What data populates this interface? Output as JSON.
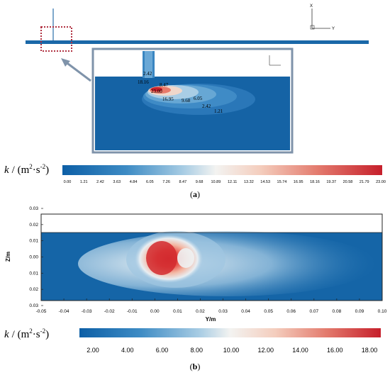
{
  "panel_a": {
    "axis_x": "X",
    "axis_y": "Y",
    "contour_labels": [
      "2.42",
      "18.16",
      "8.47",
      "23.00",
      "16.95",
      "9.68",
      "6.05",
      "2.42",
      "1.21"
    ],
    "colorbar": {
      "label_k": "k",
      "label_units": "/ (m",
      "label_sup1": "2",
      "label_mid": "·s",
      "label_sup2": "-2",
      "label_close": ")",
      "ticks": [
        "0.00",
        "1.21",
        "2.42",
        "3.63",
        "4.84",
        "6.05",
        "7.26",
        "8.47",
        "9.68",
        "10.89",
        "12.11",
        "13.32",
        "14.53",
        "15.74",
        "16.95",
        "18.16",
        "19.37",
        "20.58",
        "21.79",
        "23.00"
      ]
    },
    "caption": "a"
  },
  "panel_b": {
    "xlabel": "Y/m",
    "ylabel": "Z/m",
    "xticks": [
      "-0.05",
      "-0.04",
      "-0.03",
      "-0.02",
      "-0.01",
      "0.00",
      "0.01",
      "0.02",
      "0.03",
      "0.04",
      "0.05",
      "0.06",
      "0.07",
      "0.08",
      "0.09",
      "0.10"
    ],
    "yticks": [
      "0.03",
      "0.02",
      "0.01",
      "0.00",
      "0.01",
      "0.02",
      "0.03"
    ],
    "colorbar": {
      "label_k": "k",
      "label_units": "/ (m",
      "label_sup1": "2",
      "label_mid": "·s",
      "label_sup2": "-2",
      "label_close": ")",
      "ticks": [
        "2.00",
        "4.00",
        "6.00",
        "8.00",
        "10.00",
        "12.00",
        "14.00",
        "16.00",
        "18.00"
      ]
    },
    "caption": "b"
  },
  "colors": {
    "low": "#1a68a8",
    "mid": "#f4f4f2",
    "high": "#c8202a",
    "frame": "#7f93aa",
    "dotted": "#b03040"
  }
}
